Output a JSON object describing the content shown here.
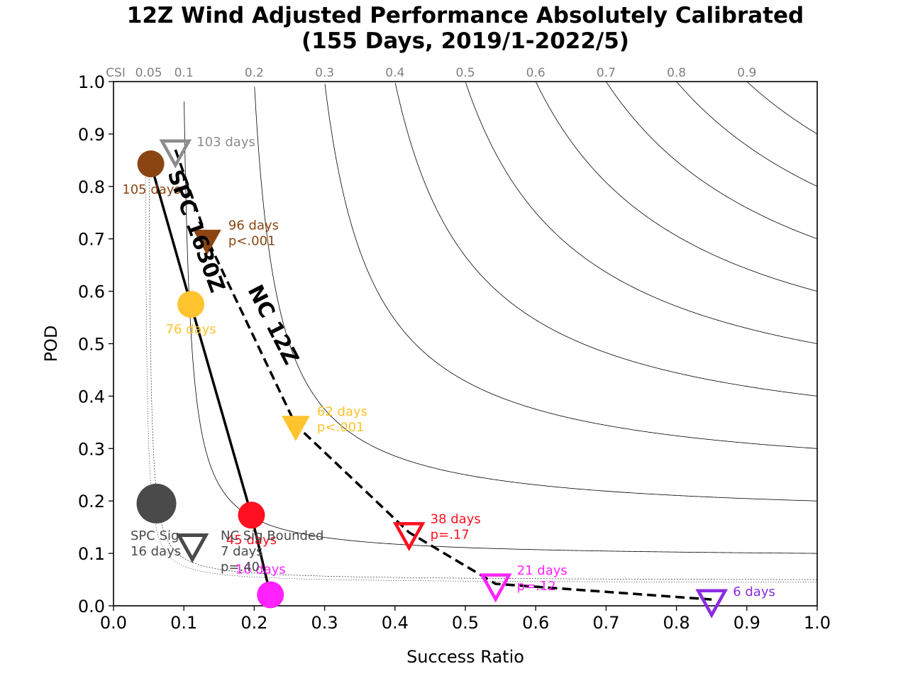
{
  "title": {
    "line1": "12Z Wind Adjusted Performance Absolutely Calibrated",
    "line2": "(155 Days, 2019/1-2022/5)"
  },
  "chart_data": {
    "type": "scatter",
    "title": "12Z Wind Adjusted Performance Absolutely Calibrated (155 Days, 2019/1-2022/5)",
    "xlabel": "Success Ratio",
    "ylabel": "POD",
    "xlim": [
      0.0,
      1.0
    ],
    "ylim": [
      0.0,
      1.0
    ],
    "x_ticks": [
      "0.0",
      "0.1",
      "0.2",
      "0.3",
      "0.4",
      "0.5",
      "0.6",
      "0.7",
      "0.8",
      "0.9",
      "1.0"
    ],
    "y_ticks": [
      "0.0",
      "0.1",
      "0.2",
      "0.3",
      "0.4",
      "0.5",
      "0.6",
      "0.7",
      "0.8",
      "0.9",
      "1.0"
    ],
    "csi": {
      "axis_label": "CSI",
      "dashed_levels": [
        0.05
      ],
      "levels": [
        0.1,
        0.2,
        0.3,
        0.4,
        0.5,
        0.6,
        0.7,
        0.8,
        0.9
      ],
      "tick_labels": [
        "0.05",
        "0.1",
        "0.2",
        "0.3",
        "0.4",
        "0.5",
        "0.6",
        "0.7",
        "0.8",
        "0.9"
      ],
      "extra_dotted_level": 0.045
    },
    "series": [
      {
        "name": "SPC 1630Z",
        "line_style": "solid",
        "marker": "circle",
        "points": [
          {
            "x": 0.053,
            "y": 0.843,
            "color": "#8B4513",
            "filled": true,
            "labels": [
              "105 days"
            ],
            "label_pos": "below-left"
          },
          {
            "x": 0.11,
            "y": 0.575,
            "color": "#FFC42E",
            "filled": true,
            "labels": [
              "76 days"
            ],
            "label_pos": "below"
          },
          {
            "x": 0.196,
            "y": 0.173,
            "color": "#FF1020",
            "filled": true,
            "labels": [
              "45 days"
            ],
            "label_pos": "below"
          },
          {
            "x": 0.223,
            "y": 0.021,
            "color": "#FF22FF",
            "filled": true,
            "labels": [
              "16 days"
            ],
            "label_pos": "above-left"
          }
        ]
      },
      {
        "name": "NC 12Z",
        "line_style": "dashed",
        "marker": "triangle-down",
        "points": [
          {
            "x": 0.088,
            "y": 0.87,
            "color": "#8C8C8C",
            "filled": false,
            "labels": [
              "103 days"
            ],
            "label_pos": "right"
          },
          {
            "x": 0.133,
            "y": 0.7,
            "color": "#8B4513",
            "filled": true,
            "labels": [
              "96 days",
              "p<.001"
            ],
            "label_pos": "right"
          },
          {
            "x": 0.259,
            "y": 0.345,
            "color": "#FFC42E",
            "filled": true,
            "labels": [
              "62 days",
              "p<.001"
            ],
            "label_pos": "right"
          },
          {
            "x": 0.42,
            "y": 0.14,
            "color": "#FF1020",
            "filled": false,
            "labels": [
              "38 days",
              "p=.17"
            ],
            "label_pos": "right"
          },
          {
            "x": 0.543,
            "y": 0.042,
            "color": "#FF22FF",
            "filled": false,
            "labels": [
              "21 days",
              "p=.12"
            ],
            "label_pos": "right"
          },
          {
            "x": 0.85,
            "y": 0.012,
            "color": "#8A2BE2",
            "filled": false,
            "labels": [
              "6 days"
            ],
            "label_pos": "right"
          }
        ]
      }
    ],
    "sig_points": [
      {
        "name": "SPC Sig",
        "labels": [
          "SPC Sig",
          "16 days"
        ],
        "x": 0.061,
        "y": 0.195,
        "color": "#4A4A4A",
        "marker": "circle",
        "filled": true
      },
      {
        "name": "NC Sig Bounded",
        "labels": [
          "NC Sig Bounded",
          "7 days",
          "p=.40"
        ],
        "x": 0.112,
        "y": 0.118,
        "color": "#4A4A4A",
        "marker": "triangle-down",
        "filled": false
      }
    ],
    "curve_labels": [
      {
        "text": "SPC 1630Z",
        "x": 0.108,
        "y": 0.71,
        "color": "#000000"
      },
      {
        "text": "NC 12Z",
        "x": 0.218,
        "y": 0.53,
        "color": "#000000"
      }
    ]
  }
}
